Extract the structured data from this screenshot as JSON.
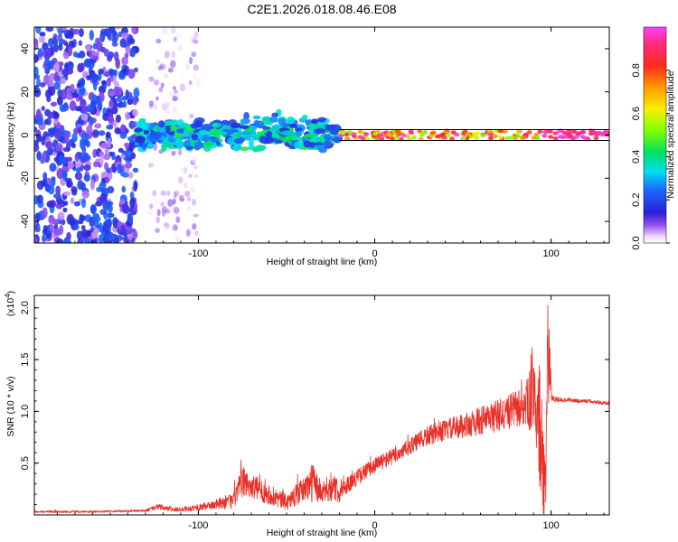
{
  "title": "C2E1.2026.018.08.46.E08",
  "chart_data": [
    {
      "type": "heatmap",
      "xlabel": "Height of straight line (km)",
      "ylabel": "Frequency (Hz)",
      "xlim": [
        -193,
        133
      ],
      "ylim": [
        -50,
        50
      ],
      "xticks": [
        -100,
        0,
        100
      ],
      "xtick_labels": [
        "-100",
        "0",
        "100"
      ],
      "yticks": [
        -40,
        -20,
        0,
        20,
        40
      ],
      "ytick_labels": [
        "-40",
        "-20",
        "0",
        "20",
        "40"
      ],
      "colorbar": {
        "label": "Normalized spectral amplitude",
        "range": [
          0,
          1
        ],
        "ticks": [
          0,
          0.2,
          0.4,
          0.6,
          0.8
        ],
        "tick_labels": [
          "0.0",
          "0.2",
          "0.4",
          "0.6",
          "0.8"
        ],
        "colormap": "white-violet-blue-cyan-green-yellow-orange-red-magenta"
      },
      "regions": [
        {
          "x": [
            -193,
            -135
          ],
          "freq": [
            -50,
            50
          ],
          "amplitude": [
            0.05,
            0.25
          ],
          "note": "dense broadband noise"
        },
        {
          "x": [
            -127,
            -100
          ],
          "freq": [
            -50,
            50
          ],
          "amplitude": [
            0.0,
            0.1
          ],
          "note": "sparse noise"
        },
        {
          "x": [
            -135,
            -20
          ],
          "freq": [
            -7,
            8
          ],
          "amplitude": [
            0.15,
            0.45
          ],
          "note": "clustered signal near 0 Hz"
        },
        {
          "x": [
            -20,
            94
          ],
          "freq": [
            -2,
            2
          ],
          "amplitude": [
            0.5,
            1.0
          ],
          "note": "narrow strong line at ~0 Hz"
        },
        {
          "x": [
            94,
            133
          ],
          "freq": [
            -2,
            2
          ],
          "amplitude": [
            0.85,
            1.0
          ],
          "note": "continued narrow line at ~0 Hz"
        }
      ],
      "marker_line_hz": [
        -2.5,
        2.5
      ]
    },
    {
      "type": "line",
      "xlabel": "Height of straight line (km)",
      "ylabel": "SNR (10 * v/v)",
      "y_multiplier": "(x10^4)",
      "y_multiplier_base": "(x10",
      "y_multiplier_exp": "4",
      "xlim": [
        -193,
        133
      ],
      "ylim": [
        0,
        2.12
      ],
      "xticks": [
        -100,
        0,
        100
      ],
      "xtick_labels": [
        "-100",
        "0",
        "100"
      ],
      "yticks": [
        0.5,
        1.0,
        1.5,
        2.0
      ],
      "ytick_labels": [
        "0.5",
        "1.0",
        "1.5",
        "2.0"
      ],
      "color": "#e83028",
      "series": [
        {
          "x": [
            -193,
            -160,
            -130,
            -123,
            -115,
            -100,
            -90,
            -80,
            -75,
            -70,
            -60,
            -50,
            -40,
            -35,
            -30,
            -25,
            -20,
            -15,
            -10,
            -5,
            0,
            10,
            20,
            30,
            40,
            50,
            60,
            70,
            80,
            85,
            88,
            90,
            92,
            94,
            95,
            96,
            97,
            98,
            99,
            100,
            101,
            105,
            110,
            115,
            120,
            125,
            133
          ],
          "y": [
            0.03,
            0.03,
            0.04,
            0.08,
            0.05,
            0.07,
            0.1,
            0.14,
            0.32,
            0.28,
            0.2,
            0.12,
            0.25,
            0.32,
            0.2,
            0.28,
            0.22,
            0.3,
            0.36,
            0.42,
            0.48,
            0.56,
            0.66,
            0.76,
            0.82,
            0.86,
            0.91,
            0.96,
            1.02,
            1.05,
            1.1,
            1.3,
            1.0,
            0.8,
            0.5,
            0.25,
            0.15,
            1.9,
            1.5,
            1.2,
            1.12,
            1.11,
            1.11,
            1.1,
            1.1,
            1.09,
            1.08
          ],
          "noise": [
            0.01,
            0.01,
            0.01,
            0.03,
            0.02,
            0.03,
            0.05,
            0.08,
            0.15,
            0.12,
            0.1,
            0.08,
            0.12,
            0.2,
            0.1,
            0.15,
            0.1,
            0.08,
            0.08,
            0.08,
            0.08,
            0.08,
            0.08,
            0.1,
            0.1,
            0.12,
            0.14,
            0.16,
            0.18,
            0.2,
            0.3,
            0.5,
            0.6,
            0.6,
            0.5,
            0.4,
            0.3,
            0.7,
            0.5,
            0.1,
            0.03,
            0.02,
            0.02,
            0.02,
            0.02,
            0.02,
            0.02
          ]
        }
      ]
    }
  ]
}
